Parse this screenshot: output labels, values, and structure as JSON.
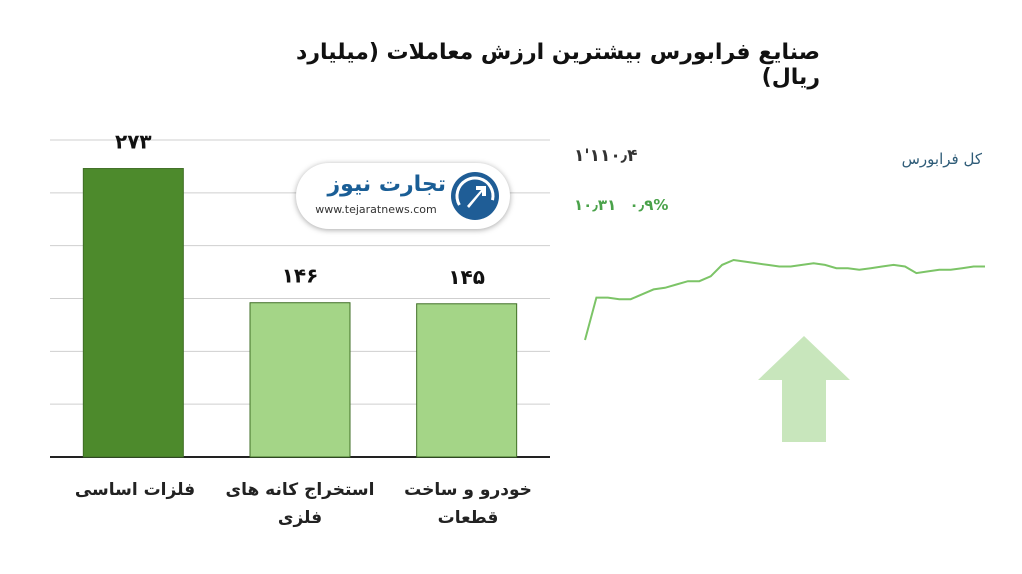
{
  "title": "صنایع فرابورس بیشترین ارزش معاملات  (میلیارد ریال)",
  "chart_data": [
    {
      "type": "bar",
      "categories": [
        "فلزات اساسی",
        "استخراج کانه های فلزی",
        "خودرو و ساخت قطعات"
      ],
      "values": [
        273,
        146,
        145
      ],
      "value_labels": [
        "۲۷۳",
        "۱۴۶",
        "۱۴۵"
      ],
      "colors": [
        "#4d8a2c",
        "#a4d587",
        "#a4d587"
      ],
      "ylim": [
        0,
        300
      ],
      "grid": true,
      "legend": "none"
    },
    {
      "type": "line",
      "series_title": "کل فرابورس",
      "index_value": "۱'۱۱۰٫۴",
      "change_abs": "۱۰٫۳۱",
      "change_pct": "۰٫۹%",
      "values": [
        5,
        31,
        31,
        30,
        30,
        33,
        36,
        37,
        39,
        41,
        41,
        44,
        51,
        54,
        53,
        52,
        51,
        50,
        50,
        51,
        52,
        51,
        49,
        49,
        48,
        49,
        50,
        51,
        50,
        46,
        47,
        48,
        48,
        49,
        50,
        50
      ],
      "color": "#7cc467",
      "trend_arrow": "up",
      "arrow_color": "#c8e6bc"
    }
  ],
  "logo": {
    "name": "تجارت نیوز",
    "url": "www.tejaratnews.com",
    "icon": "tejarat-logo-icon"
  }
}
